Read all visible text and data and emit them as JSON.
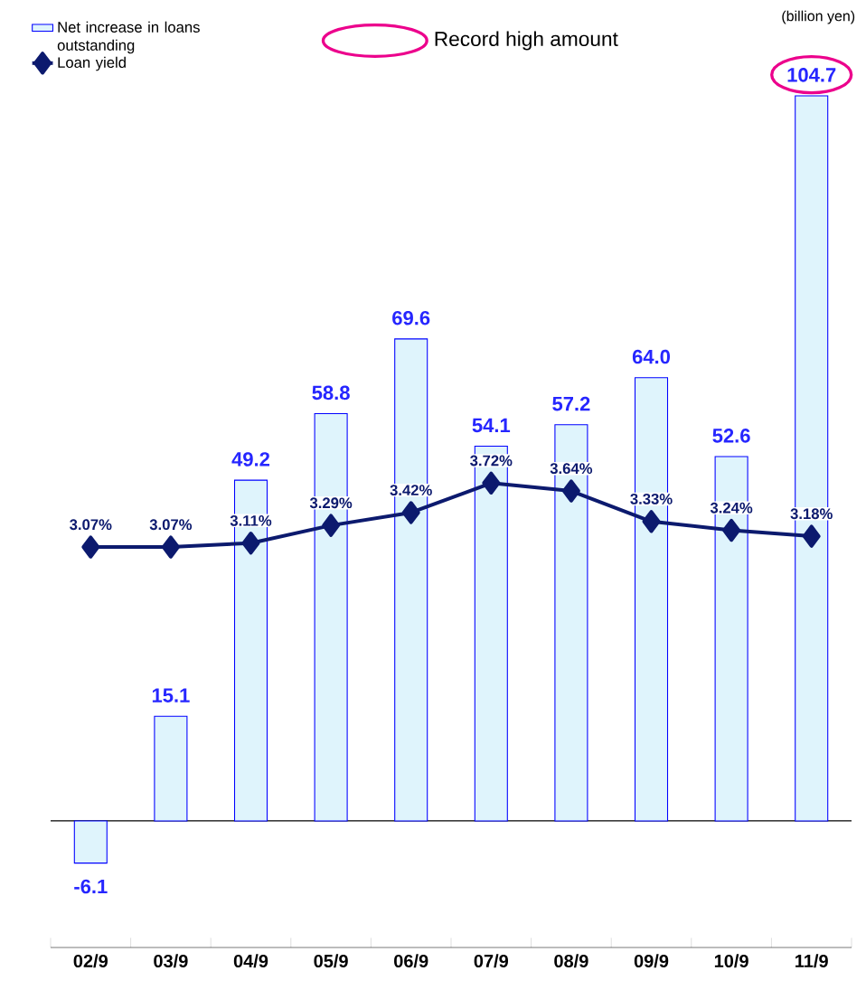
{
  "chart_data": {
    "type": "bar",
    "categories": [
      "02/9",
      "03/9",
      "04/9",
      "05/9",
      "06/9",
      "07/9",
      "08/9",
      "09/9",
      "10/9",
      "11/9"
    ],
    "annotations": [
      "(billion yen)",
      "Record high amount"
    ],
    "tick_labels": "x",
    "legend": "top left",
    "grid": false,
    "marker": "diamond",
    "line_style": "solid",
    "series": [
      {
        "name": "Net increase in loans outstanding",
        "color": "#dff4fc",
        "values": [
          -6.1,
          15.1,
          49.2,
          58.8,
          69.6,
          54.1,
          57.2,
          64.0,
          52.6,
          104.7
        ],
        "value_labels": [
          "-6.1",
          "15.1",
          "49.2",
          "58.8",
          "69.6",
          "54.1",
          "57.2",
          "64.0",
          "52.6",
          "104.7"
        ]
      },
      {
        "name": "Loan yield",
        "type": "line",
        "axis": "y2",
        "color": "#0c1a6e",
        "values": [
          3.07,
          3.07,
          3.11,
          3.29,
          3.42,
          3.72,
          3.64,
          3.33,
          3.24,
          3.18
        ],
        "value_labels": [
          "3.07%",
          "3.07%",
          "3.11%",
          "3.29%",
          "3.42%",
          "3.72%",
          "3.64%",
          "3.33%",
          "3.24%",
          "3.18%"
        ]
      }
    ]
  }
}
